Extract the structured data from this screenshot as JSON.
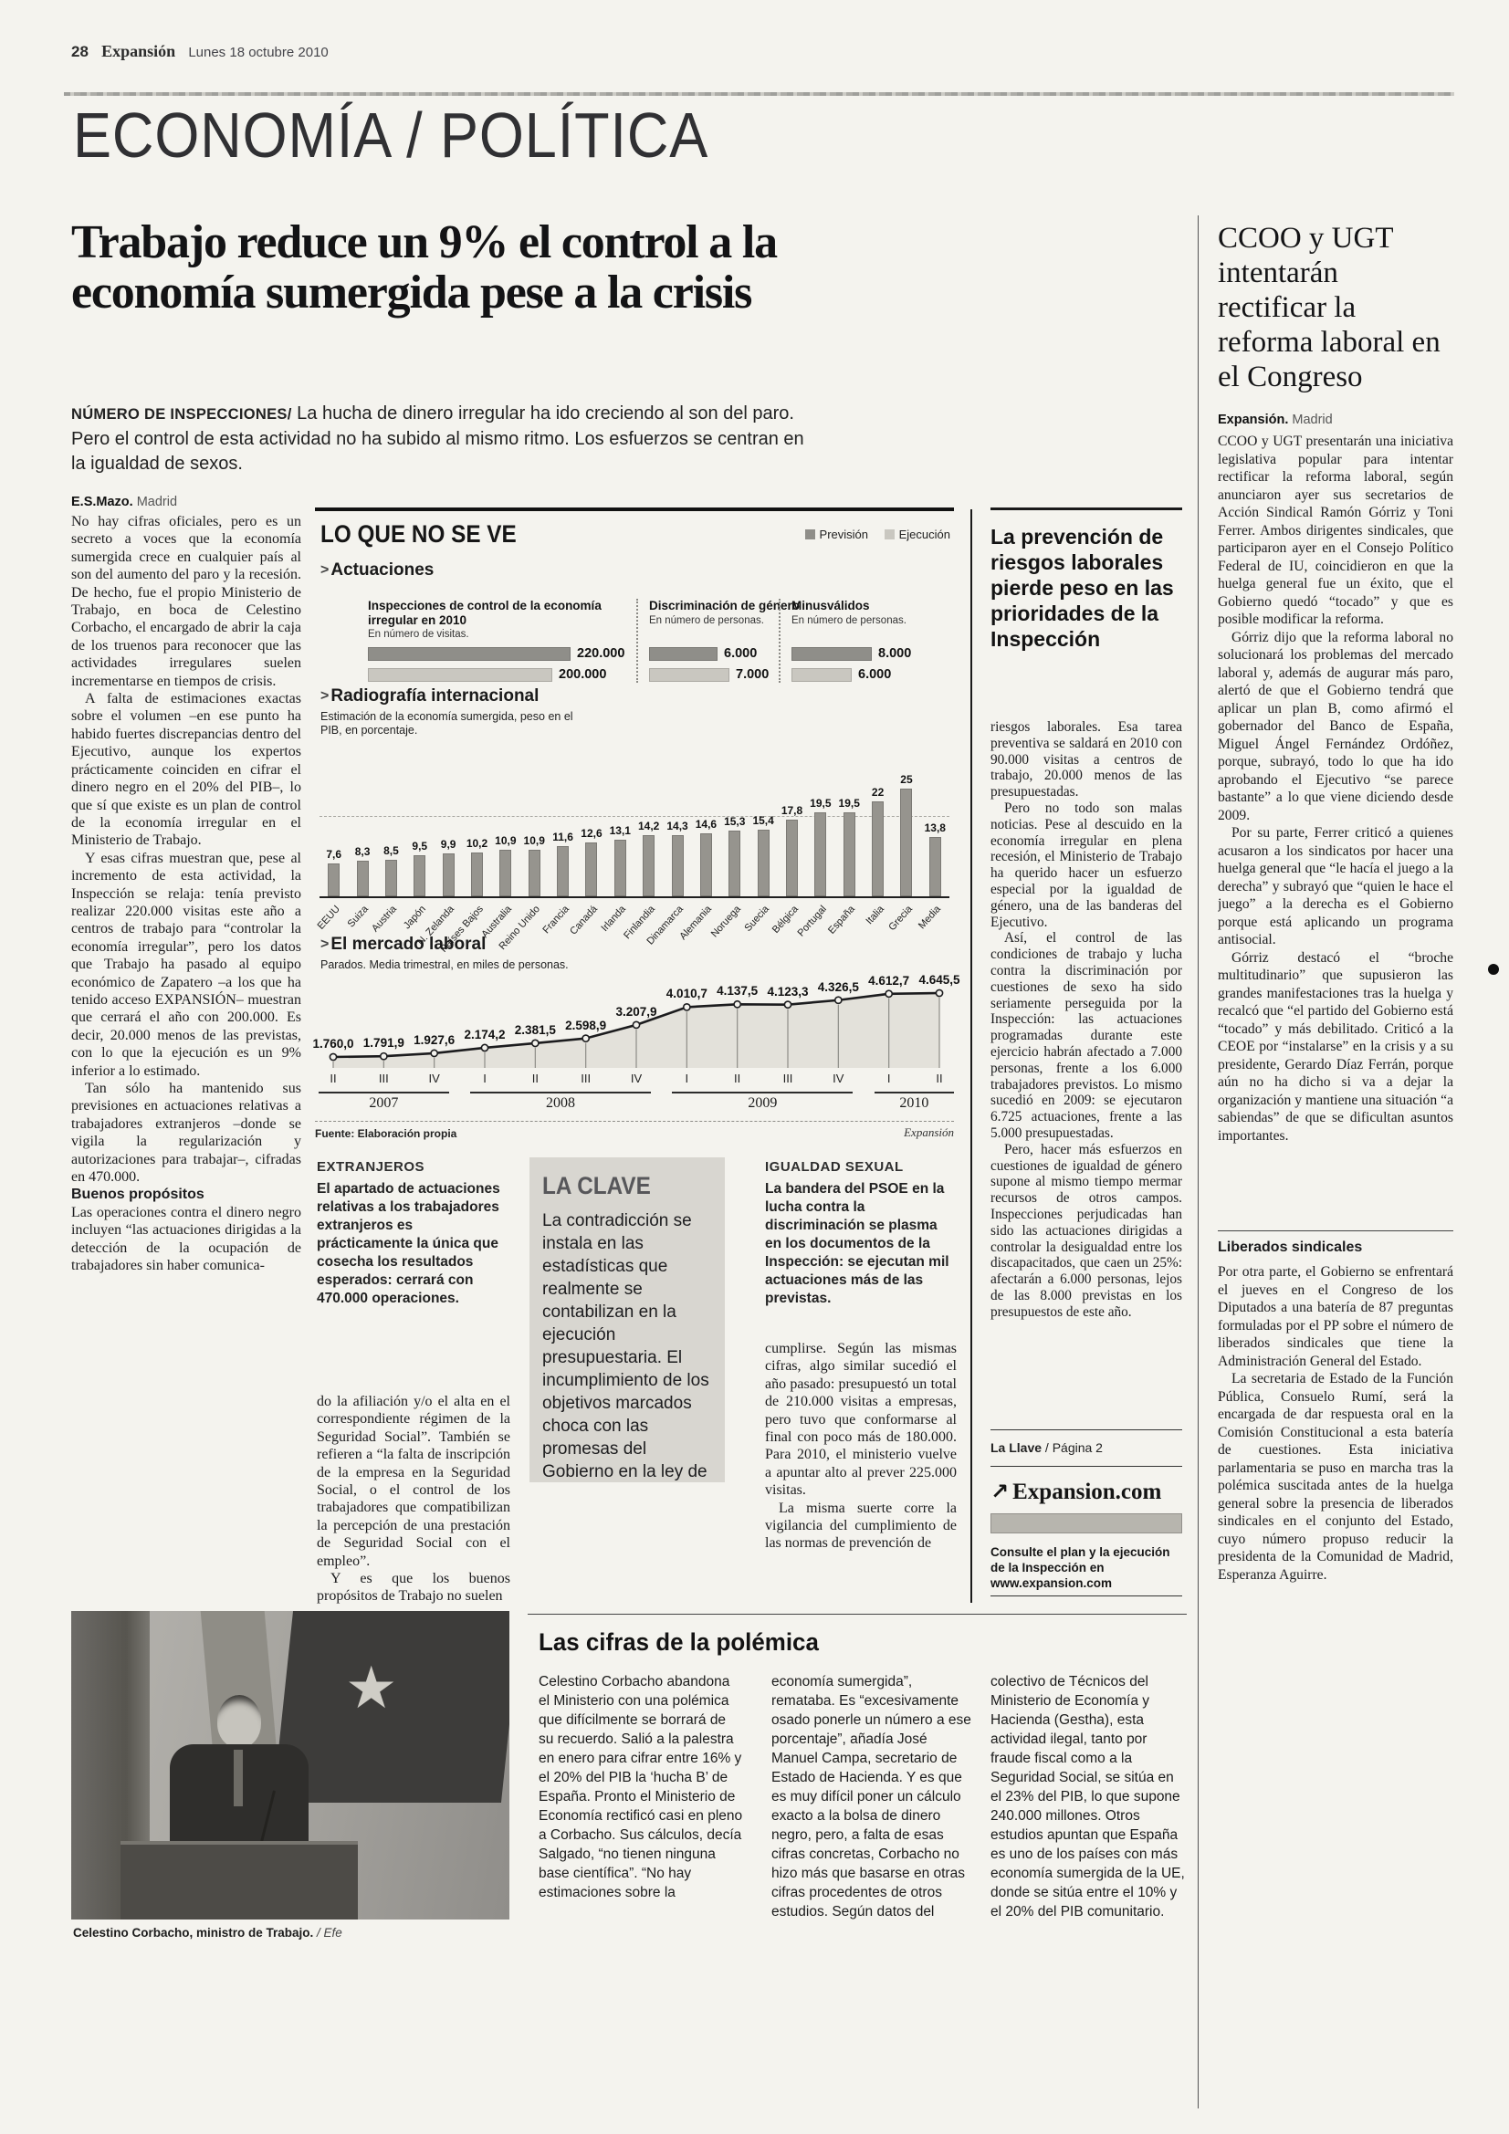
{
  "page": {
    "number": "28",
    "brand": "Expansión",
    "date": "Lunes 18 octubre 2010",
    "section": "ECONOMÍA / POLÍTICA"
  },
  "main": {
    "headline": "Trabajo reduce un 9% el control a la economía sumergida pese a la crisis",
    "kicker_label": "NÚMERO DE INSPECCIONES/",
    "kicker": " La hucha de dinero irregular ha ido creciendo al son del paro. Pero el control de esta actividad no ha subido al mismo ritmo. Los esfuerzos se centran en la igualdad de sexos.",
    "byline": "E.S.Mazo.",
    "byline_city": " Madrid",
    "col1_p1": "No hay cifras oficiales, pero es un secreto a voces que la economía sumergida crece en cualquier país al son del aumento del paro y la recesión. De hecho, fue el propio Ministerio de Trabajo, en boca de Celestino Corbacho, el encargado de abrir la caja de los truenos para reconocer que las actividades irregulares suelen incrementarse en tiempos de crisis.",
    "col1_p2": "A falta de estimaciones exactas sobre el volumen –en ese punto ha habido fuertes discrepancias dentro del Ejecutivo, aunque los expertos prácticamente coinciden en cifrar el dinero negro en el 20% del PIB–, lo que sí que existe es un plan de control de la economía irregular en el Ministerio de Trabajo.",
    "col1_p3": "Y esas cifras muestran que, pese al incremento de esta actividad, la Inspección se relaja: tenía previsto realizar 220.000 visitas este año a centros de trabajo para “controlar la economía irregular”, pero los datos que Trabajo ha pasado al equipo económico de Zapatero –a los que ha tenido acceso EXPANSIÓN– muestran que cerrará el año con 200.000. Es decir, 20.000 menos de las previstas, con lo que la ejecución es un 9% inferior a lo estimado.",
    "col1_p4": "Tan sólo ha mantenido sus previsiones en actuaciones relativas a trabajadores extranjeros –donde se vigila la regularización y autorizaciones para trabajar–, cifradas en 470.000.",
    "col1_sub": "Buenos propósitos",
    "col1_p5": "Las operaciones contra el dinero negro incluyen “las actuaciones dirigidas a la detección de la ocupación de trabajadores sin haber comunica-",
    "col2_note_title": "EXTRANJEROS",
    "col2_note": "El apartado de actuaciones relativas a los trabajadores extranjeros es prácticamente la única que cosecha los resultados esperados: cerrará con 470.000 operaciones.",
    "col2_p1": "do la afiliación y/o el alta en el correspondiente régimen de la Seguridad Social”. También se refieren a “la falta de inscripción de la empresa en la Seguridad Social, o el control de los trabajadores que compatibilizan la percepción de una prestación de Seguridad Social con el empleo”.",
    "col2_p2": "Y es que los buenos propósitos de Trabajo no suelen",
    "igualdad_title": "IGUALDAD SEXUAL",
    "igualdad_text": "La bandera del PSOE en la lucha contra la discriminación se plasma en los documentos de la Inspección: se ejecutan mil actuaciones más de las previstas.",
    "col3_p1": "cumplirse. Según las mismas cifras, algo similar sucedió el año pasado: presupuestó un total de 210.000 visitas a empresas, pero tuvo que conformarse al final con poco más de 180.000. Para 2010, el ministerio vuelve a apuntar alto al prever 225.000 visitas.",
    "col3_p2": "La misma suerte corre la vigilancia del cumplimiento de las normas de prevención de",
    "clave_title": "LA CLAVE",
    "clave_text": "La contradicción se instala en las estadísticas que realmente se contabilizan en la ejecución presupuestaria. El incumplimiento de los objetivos marcados choca con las promesas del Gobierno en la ley de prevención del fraude fiscal."
  },
  "infographic": {
    "title": "LO QUE NO SE VE",
    "legend": {
      "prevision": "Previsión",
      "ejecucion": "Ejecución"
    }
  },
  "chart_data": [
    {
      "type": "bar",
      "title": "Actuaciones",
      "legend": [
        "Previsión",
        "Ejecución"
      ],
      "unit_groups": [
        {
          "label": "Inspecciones de control de la economía irregular en 2010",
          "sublabel": "En número de visitas.",
          "series": [
            {
              "name": "Previsión",
              "value": 220000,
              "label": "220.000"
            },
            {
              "name": "Ejecución",
              "value": 200000,
              "label": "200.000"
            }
          ]
        },
        {
          "label": "Discriminación de género",
          "sublabel": "En número de personas.",
          "series": [
            {
              "name": "Previsión",
              "value": 6000,
              "label": "6.000"
            },
            {
              "name": "Ejecución",
              "value": 7000,
              "label": "7.000"
            }
          ]
        },
        {
          "label": "Minusválidos",
          "sublabel": "En número de personas.",
          "series": [
            {
              "name": "Previsión",
              "value": 8000,
              "label": "8.000"
            },
            {
              "name": "Ejecución",
              "value": 6000,
              "label": "6.000"
            }
          ]
        }
      ]
    },
    {
      "type": "bar",
      "title": "Radiografía internacional",
      "subtitle": "Estimación de la economía sumergida, peso en el PIB, en porcentaje.",
      "categories": [
        "EEUU",
        "Suiza",
        "Austria",
        "Japón",
        "N. Zelanda",
        "Países Bajos",
        "Australia",
        "Reino Unido",
        "Francia",
        "Canadá",
        "Irlanda",
        "Finlandia",
        "Dinamarca",
        "Alemania",
        "Noruega",
        "Suecia",
        "Bélgica",
        "Portugal",
        "España",
        "Italia",
        "Grecia",
        "Media"
      ],
      "values": [
        7.6,
        8.3,
        8.5,
        9.5,
        9.9,
        10.2,
        10.9,
        10.9,
        11.6,
        12.6,
        13.1,
        14.2,
        14.3,
        14.6,
        15.3,
        15.4,
        17.8,
        19.5,
        19.5,
        22,
        25,
        13.8
      ],
      "value_labels": [
        "7,6",
        "8,3",
        "8,5",
        "9,5",
        "9,9",
        "10,2",
        "10,9",
        "10,9",
        "11,6",
        "12,6",
        "13,1",
        "14,2",
        "14,3",
        "14,6",
        "15,3",
        "15,4",
        "17,8",
        "19,5",
        "19,5",
        "22",
        "25",
        "13,8"
      ],
      "ylim": [
        0,
        25
      ]
    },
    {
      "type": "line",
      "title": "El mercado laboral",
      "subtitle": "Parados. Media trimestral, en miles de personas.",
      "x_quarters": [
        "II",
        "III",
        "IV",
        "I",
        "II",
        "III",
        "IV",
        "I",
        "II",
        "III",
        "IV",
        "I",
        "II"
      ],
      "year_groups": [
        {
          "label": "2007",
          "count": 3
        },
        {
          "label": "2008",
          "count": 4
        },
        {
          "label": "2009",
          "count": 4
        },
        {
          "label": "2010",
          "count": 2
        }
      ],
      "values": [
        1760.0,
        1791.9,
        1927.6,
        2174.2,
        2381.5,
        2598.9,
        3207.9,
        4010.7,
        4137.5,
        4123.3,
        4326.5,
        4612.7,
        4645.5
      ],
      "value_labels": [
        "1.760,0",
        "1.791,9",
        "1.927,6",
        "2.174,2",
        "2.381,5",
        "2.598,9",
        "3.207,9",
        "4.010,7",
        "4.137,5",
        "4.123,3",
        "4.326,5",
        "4.612,7",
        "4.645,5"
      ],
      "source": "Fuente: Elaboración propia",
      "credit": "Expansión"
    }
  ],
  "prevencion": {
    "headline": "La prevención de riesgos laborales pierde peso en las prioridades de la Inspección",
    "p1": "riesgos laborales. Esa tarea preventiva se saldará en 2010 con 90.000 visitas a centros de trabajo, 20.000 menos de las presupuestadas.",
    "p2": "Pero no todo son malas noticias. Pese al descuido en la economía irregular en plena recesión, el Ministerio de Trabajo ha querido hacer un esfuerzo especial por la igualdad de género, una de las banderas del Ejecutivo.",
    "p3": "Así, el control de las condiciones de trabajo y lucha contra la discriminación por cuestiones de sexo ha sido seriamente perseguida por la Inspección: las actuaciones programadas durante este ejercicio habrán afectado a 7.000 personas, frente a los 6.000 trabajadores previstos. Lo mismo sucedió en 2009: se ejecutaron 6.725 actuaciones, frente a las 5.000 presupuestadas.",
    "p4": "Pero, hacer más esfuerzos en cuestiones de igualdad de género supone al mismo tiempo mermar recursos de otros campos. Inspecciones perjudicadas han sido las actuaciones dirigidas a controlar la desigualdad entre los discapacitados, que caen un 25%: afectarán a 6.000 personas, lejos de las 8.000 previstas en los presupuestos de este año.",
    "llave_bold": "La Llave",
    "llave_rest": " / Página 2",
    "web_brand": "Expansion",
    "web_tld": ".com",
    "web_note": "Consulte el plan y la ejecución de la Inspección en www.expansion.com"
  },
  "cifras_box": {
    "title": "Las cifras de la polémica",
    "col1": "Celestino Corbacho abandona el Ministerio con una polémica que difícilmente se borrará de su recuerdo. Salió a la palestra en enero para cifrar entre 16% y el 20% del PIB la ‘hucha B’ de España. Pronto el Ministerio de Economía rectificó casi en pleno a Corbacho. Sus cálculos, decía Salgado, “no tienen ninguna base científica”. “No hay estimaciones sobre la",
    "col2": "economía sumergida”, remataba. Es “excesivamente osado ponerle un número a ese porcentaje”, añadía José Manuel Campa, secretario de Estado de Hacienda. Y es que es muy difícil poner un cálculo exacto a la bolsa de dinero negro, pero, a falta de esas cifras concretas, Corbacho no hizo más que basarse en otras cifras procedentes de otros estudios. Según datos del",
    "col3": "colectivo de Técnicos del Ministerio de Economía y Hacienda (Gestha), esta actividad ilegal, tanto por fraude fiscal como a la Seguridad Social, se sitúa en el 23% del PIB, lo que supone 240.000 millones. Otros estudios apuntan que España es uno de los países con más economía sumergida de la UE, donde se sitúa entre el 10% y el 20% del PIB comunitario."
  },
  "sidebar": {
    "headline": "CCOO y UGT intentarán rectificar la reforma laboral en el Congreso",
    "byline": "Expansión.",
    "byline_city": " Madrid",
    "p1": "CCOO y UGT presentarán una iniciativa legislativa popular para intentar rectificar la reforma laboral, según anunciaron ayer sus secretarios de Acción Sindical Ramón Górriz y Toni Ferrer. Ambos dirigentes sindicales, que participaron ayer en el Consejo Político Federal de IU, coincidieron en que la huelga general fue un éxito, que el Gobierno quedó “tocado” y que es posible modificar la reforma.",
    "p2": "Górriz dijo que la reforma laboral no solucionará los problemas del mercado laboral y, además de augurar más paro, alertó de que el Gobierno tendrá que aplicar un plan B, como afirmó el gobernador del Banco de España, Miguel Ángel Fernández Ordóñez, porque, subrayó, todo lo que ha ido aprobando el Ejecutivo “se parece bastante” a lo que viene diciendo desde 2009.",
    "p3": "Por su parte, Ferrer criticó a quienes acusaron a los sindicatos por hacer una huelga general que “le hacía el juego a la derecha” y subrayó que “quien le hace el juego” a la derecha es el Gobierno porque está aplicando un programa antisocial.",
    "p4": "Górriz destacó el “broche multitudinario” que supusieron las grandes manifestaciones tras la huelga y recalcó que “el partido del Gobierno está “tocado” y más debilitado. Criticó a la CEOE por “instalarse” en la crisis y a su presidente, Gerardo Díaz Ferrán, porque aún no ha dicho si va a dejar la organización y mantiene una situación “a sabiendas” de que se dificultan asuntos importantes.",
    "subhead": "Liberados sindicales",
    "p5": "Por otra parte, el Gobierno se enfrentará el jueves en el Congreso de los Diputados a una batería de 87 preguntas formuladas por el PP sobre el número de liberados sindicales que tiene la Administración General del Estado.",
    "p6": "La secretaria de Estado de la Función Pública, Consuelo Rumí, será la encargada de dar respuesta oral en la Comisión Constitucional a esta batería de cuestiones. Esta iniciativa parlamentaria se puso en marcha tras la polémica suscitada antes de la huelga general sobre la presencia de liberados sindicales en el conjunto del Estado, cuyo número propuso reducir la presidenta de la Comunidad de Madrid, Esperanza Aguirre."
  },
  "photo": {
    "caption": "Celestino Corbacho, ministro de Trabajo.",
    "credit": " / Efe"
  }
}
